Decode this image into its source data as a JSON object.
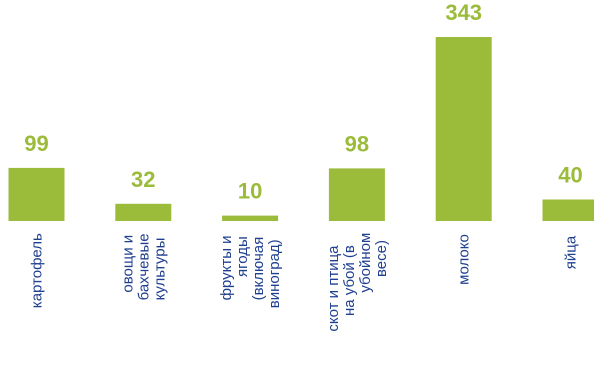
{
  "chart_data": {
    "type": "bar",
    "title": "",
    "xlabel": "",
    "ylabel": "",
    "ylim": [
      0,
      343
    ],
    "grid": false,
    "legend": "none",
    "bar_color": "#9bbb3b",
    "value_label_color": "#9bbb3b",
    "category_label_color": "#1f3f8f",
    "categories": [
      [
        "картофель"
      ],
      [
        "овощи и",
        "бахчевые",
        "культуры"
      ],
      [
        "фрукты и",
        "ягоды",
        "(включая",
        "виноград)"
      ],
      [
        "скот и птица",
        "на убой (в",
        "убойном",
        "весе)"
      ],
      [
        "молоко"
      ],
      [
        "яйца"
      ]
    ],
    "values": [
      99,
      32,
      10,
      98,
      343,
      40
    ]
  }
}
